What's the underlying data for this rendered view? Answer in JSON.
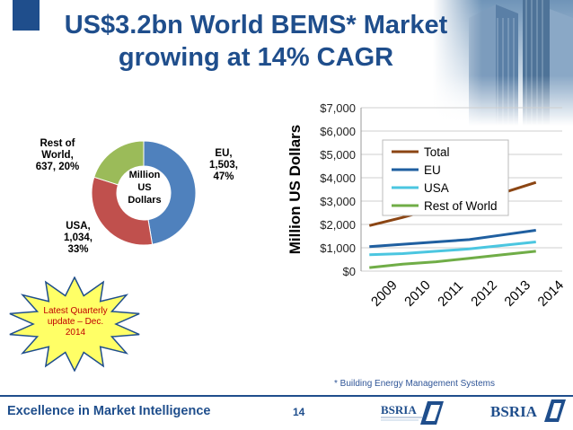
{
  "title_line1": "US$3.2bn World BEMS* Market",
  "title_line2": "growing at 14% CAGR",
  "donut": {
    "center_label": [
      "Million",
      "US",
      "Dollars"
    ],
    "slices": [
      {
        "name": "EU",
        "value": 1503,
        "percent": 47,
        "label": [
          "EU,",
          "1,503,",
          "47%"
        ],
        "color": "#4f81bd"
      },
      {
        "name": "USA",
        "value": 1034,
        "percent": 33,
        "label": [
          "USA,",
          "1,034,",
          "33%"
        ],
        "color": "#c0504d"
      },
      {
        "name": "Rest of World",
        "value": 637,
        "percent": 20,
        "label": [
          "Rest of",
          "World,",
          "637, 20%"
        ],
        "color": "#9bbb59"
      }
    ]
  },
  "chart_data": [
    {
      "type": "pie",
      "categories": [
        "EU",
        "USA",
        "Rest of World"
      ],
      "values": [
        1503,
        1034,
        637
      ],
      "percents": [
        47,
        33,
        20
      ],
      "title": "",
      "center_label": "Million US Dollars"
    },
    {
      "type": "line",
      "ylabel": "Million US Dollars",
      "xlabel": "",
      "x": [
        "2009",
        "2010",
        "2011",
        "2012",
        "2013",
        "2014"
      ],
      "ylim": [
        0,
        7000
      ],
      "y_ticks": [
        "$0",
        "$1,000",
        "$2,000",
        "$3,000",
        "$4,000",
        "$5,000",
        "$6,000",
        "$7,000"
      ],
      "grid": true,
      "legend_position": "top-center",
      "series": [
        {
          "name": "Total",
          "color": "#8b4513",
          "values": [
            1950,
            2300,
            2700,
            3000,
            3350,
            3800
          ]
        },
        {
          "name": "EU",
          "color": "#1f5fa0",
          "values": [
            1050,
            1150,
            1250,
            1350,
            1550,
            1750
          ]
        },
        {
          "name": "USA",
          "color": "#4bc6e0",
          "values": [
            700,
            750,
            850,
            950,
            1100,
            1250
          ]
        },
        {
          "name": "Rest of World",
          "color": "#70ad47",
          "values": [
            150,
            300,
            400,
            550,
            700,
            850
          ]
        }
      ]
    }
  ],
  "starburst_text": "Latest Quarterly update – Dec. 2014",
  "starburst_color": "#ffff66",
  "footnote": "* Building Energy Management Systems",
  "footer_text": "Excellence in Market Intelligence",
  "page_number": "14",
  "logo_text": "BSRIA",
  "accent_color": "#1f4e8c"
}
